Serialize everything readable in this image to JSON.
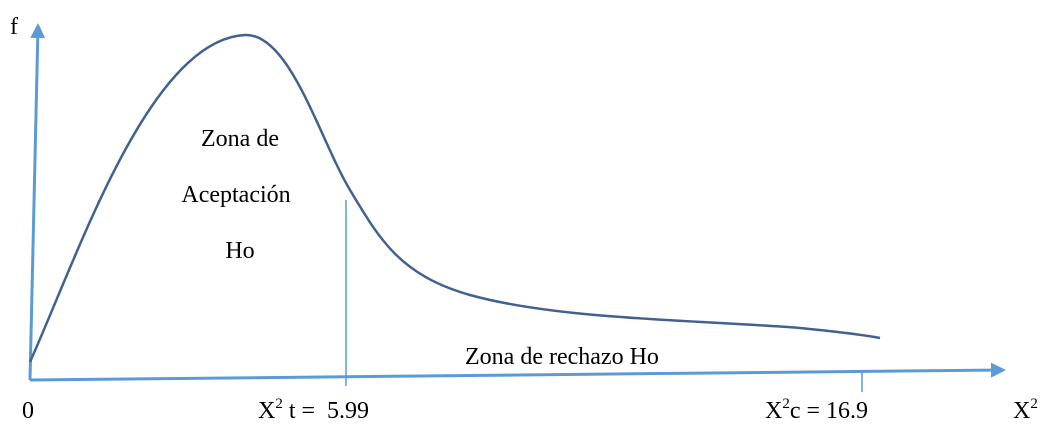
{
  "axis_labels": {
    "y": "f",
    "origin": "0",
    "x": {
      "base": "X",
      "sup": "2"
    }
  },
  "marks": [
    {
      "base": "X",
      "sup": "2",
      "rest": " t =  5.99"
    },
    {
      "base": "X",
      "sup": "2",
      "rest": "c = 16.9"
    }
  ],
  "zones": {
    "acceptance": [
      "Zona de",
      "Aceptación",
      "Ho"
    ],
    "rejection": "Zona de rechazo Ho"
  }
}
